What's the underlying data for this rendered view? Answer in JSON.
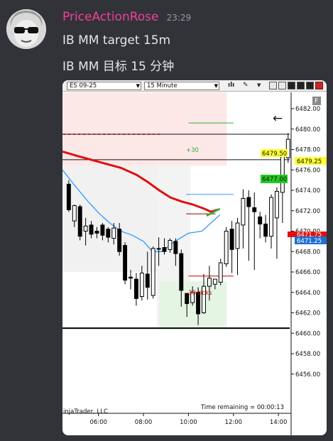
{
  "message": {
    "username": "PriceActionRose",
    "timestamp": "23:29",
    "lines": [
      "IB MM target 15m",
      "IB MM 目标 15 分钟"
    ]
  },
  "toolbar": {
    "instrument": "ES 09-25",
    "interval": "15 Minute"
  },
  "chart_overlay": {
    "back_arrow": "←",
    "panel_letter": "F",
    "watermark": "injaTrader, LLC",
    "time_remaining": "Time remaining = 00:00:13",
    "target_plus": "+30",
    "target_minus": "-30 ticks",
    "price_labels": [
      "6479.50",
      "6479.25",
      "6477.00",
      "6471.25"
    ],
    "partial_label": "6471.75"
  },
  "colors": {
    "bg": "#313338",
    "username": "#f23f9b",
    "ema_red": "#e01010",
    "sma_blue": "#3399ff",
    "green_line": "#33aa33",
    "dark_red_line": "#cc0000"
  },
  "chart_data": {
    "type": "candlestick",
    "x_tick_labels": [
      "06:00",
      "08:00",
      "10:00",
      "12:00",
      "14:00"
    ],
    "y_tick_labels": [
      "6482.00",
      "6480.00",
      "6478.00",
      "6476.00",
      "6474.00",
      "6472.00",
      "6470.00",
      "6468.00",
      "6466.00",
      "6464.00",
      "6462.00",
      "6460.00",
      "6458.00",
      "6456.00"
    ],
    "ylim": [
      6454.8,
      6483.6
    ],
    "xlim_hours": [
      4.4,
      14.5
    ],
    "bar_interval_minutes": 15,
    "first_bar_hour": 4.68,
    "candles": [
      {
        "o": 6474.6,
        "h": 6475.0,
        "c": 6472.1,
        "l": 6471.9
      },
      {
        "o": 6471.0,
        "h": 6472.6,
        "c": 6472.5,
        "l": 6470.4
      },
      {
        "o": 6472.4,
        "h": 6472.6,
        "c": 6469.5,
        "l": 6469.1
      },
      {
        "o": 6470.0,
        "h": 6471.3,
        "c": 6470.5,
        "l": 6468.6
      },
      {
        "o": 6470.6,
        "h": 6471.0,
        "c": 6469.7,
        "l": 6469.3
      },
      {
        "o": 6470.0,
        "h": 6470.4,
        "c": 6469.8,
        "l": 6469.3
      },
      {
        "o": 6470.6,
        "h": 6470.8,
        "c": 6469.6,
        "l": 6469.1
      },
      {
        "o": 6470.2,
        "h": 6470.4,
        "c": 6469.4,
        "l": 6468.9
      },
      {
        "o": 6469.3,
        "h": 6470.8,
        "c": 6470.3,
        "l": 6468.7
      },
      {
        "o": 6470.2,
        "h": 6470.8,
        "c": 6468.0,
        "l": 6467.6
      },
      {
        "o": 6468.6,
        "h": 6468.9,
        "c": 6465.2,
        "l": 6464.8
      },
      {
        "o": 6465.5,
        "h": 6466.2,
        "c": 6465.4,
        "l": 6464.3
      },
      {
        "o": 6465.3,
        "h": 6465.9,
        "c": 6463.4,
        "l": 6462.7
      },
      {
        "o": 6463.6,
        "h": 6466.6,
        "c": 6465.9,
        "l": 6463.2
      },
      {
        "o": 6465.8,
        "h": 6468.0,
        "c": 6464.5,
        "l": 6463.3
      },
      {
        "o": 6463.7,
        "h": 6468.5,
        "c": 6468.3,
        "l": 6463.4
      },
      {
        "o": 6468.3,
        "h": 6469.4,
        "c": 6468.3,
        "l": 6466.6
      },
      {
        "o": 6468.4,
        "h": 6469.3,
        "c": 6468.0,
        "l": 6467.7
      },
      {
        "o": 6468.2,
        "h": 6469.3,
        "c": 6469.1,
        "l": 6467.9
      },
      {
        "o": 6469.0,
        "h": 6469.3,
        "c": 6467.8,
        "l": 6466.6
      },
      {
        "o": 6467.8,
        "h": 6468.2,
        "c": 6464.2,
        "l": 6462.6
      },
      {
        "o": 6463.9,
        "h": 6463.7,
        "c": 6462.9,
        "l": 6461.6
      },
      {
        "o": 6463.0,
        "h": 6464.6,
        "c": 6464.0,
        "l": 6462.7
      },
      {
        "o": 6464.0,
        "h": 6464.5,
        "c": 6461.9,
        "l": 6460.8
      },
      {
        "o": 6462.0,
        "h": 6465.8,
        "c": 6464.6,
        "l": 6461.9
      },
      {
        "o": 6464.6,
        "h": 6466.6,
        "c": 6465.4,
        "l": 6463.2
      },
      {
        "o": 6464.8,
        "h": 6465.3,
        "c": 6465.3,
        "l": 6464.3
      },
      {
        "o": 6465.0,
        "h": 6467.3,
        "c": 6466.9,
        "l": 6464.7
      },
      {
        "o": 6466.8,
        "h": 6470.4,
        "c": 6470.0,
        "l": 6466.5
      },
      {
        "o": 6470.2,
        "h": 6471.0,
        "c": 6468.2,
        "l": 6465.9
      },
      {
        "o": 6468.3,
        "h": 6471.3,
        "c": 6470.8,
        "l": 6465.7
      },
      {
        "o": 6470.6,
        "h": 6474.1,
        "c": 6473.2,
        "l": 6468.3
      },
      {
        "o": 6473.3,
        "h": 6474.0,
        "c": 6472.4,
        "l": 6467.1
      },
      {
        "o": 6472.3,
        "h": 6473.8,
        "c": 6471.9,
        "l": 6466.2
      },
      {
        "o": 6471.4,
        "h": 6471.9,
        "c": 6470.7,
        "l": 6469.3
      },
      {
        "o": 6470.7,
        "h": 6471.6,
        "c": 6469.5,
        "l": 6468.9
      },
      {
        "o": 6469.5,
        "h": 6473.6,
        "c": 6473.3,
        "l": 6468.3
      },
      {
        "o": 6471.3,
        "h": 6474.3,
        "c": 6473.9,
        "l": 6467.3
      },
      {
        "o": 6473.8,
        "h": 6477.5,
        "c": 6477.3,
        "l": 6470.8
      },
      {
        "o": 6477.2,
        "h": 6479.6,
        "c": 6479.0,
        "l": 6476.7
      }
    ],
    "ema_red": [
      [
        4.4,
        6477.8
      ],
      [
        5.0,
        6477.4
      ],
      [
        6.0,
        6476.8
      ],
      [
        7.0,
        6476.2
      ],
      [
        7.7,
        6475.5
      ],
      [
        8.2,
        6474.8
      ],
      [
        8.7,
        6474.0
      ],
      [
        9.2,
        6473.3
      ],
      [
        9.7,
        6472.9
      ],
      [
        10.2,
        6472.6
      ],
      [
        10.7,
        6472.2
      ],
      [
        11.0,
        6471.9
      ],
      [
        11.3,
        6472.1
      ]
    ],
    "sma_blue": [
      [
        4.4,
        6476.0
      ],
      [
        4.9,
        6474.6
      ],
      [
        5.5,
        6473.0
      ],
      [
        6.0,
        6471.8
      ],
      [
        6.5,
        6470.8
      ],
      [
        7.0,
        6470.0
      ],
      [
        7.5,
        6469.6
      ],
      [
        8.0,
        6469.0
      ],
      [
        8.4,
        6468.0
      ],
      [
        8.8,
        6468.0
      ],
      [
        9.4,
        6469.0
      ],
      [
        10.0,
        6469.8
      ],
      [
        10.6,
        6470.0
      ],
      [
        11.0,
        6470.8
      ],
      [
        11.4,
        6471.6
      ]
    ],
    "green_trend": [
      [
        10.8,
        6471.5
      ],
      [
        11.4,
        6472.2
      ]
    ],
    "levels": [
      {
        "name": "target-plus-line",
        "y": 6480.6,
        "x0": 10.0,
        "x1": 12.0,
        "color": "#33aa33"
      },
      {
        "name": "resistance-line",
        "y": 6479.5,
        "x0": 4.4,
        "x1": 14.5,
        "color": "#111111"
      },
      {
        "name": "upper-line",
        "y": 6477.0,
        "x0": 4.4,
        "x1": 14.5,
        "color": "#111111"
      },
      {
        "name": "blue-level-line",
        "y": 6473.6,
        "x0": 9.9,
        "x1": 12.0,
        "color": "#3399ff"
      },
      {
        "name": "dark-red-level-line",
        "y": 6471.7,
        "x0": 9.9,
        "x1": 11.2,
        "color": "#8b0000"
      },
      {
        "name": "target-minus-line",
        "y": 6465.6,
        "x0": 10.0,
        "x1": 12.0,
        "color": "#cc0000"
      },
      {
        "name": "base-line",
        "y": 6460.5,
        "x0": 4.4,
        "x1": 14.5,
        "color": "#000000"
      }
    ],
    "dotted_red_level": {
      "y": 6479.5,
      "x0": 4.45,
      "x1": 8.8,
      "color": "#cc0000"
    },
    "grid": false
  }
}
